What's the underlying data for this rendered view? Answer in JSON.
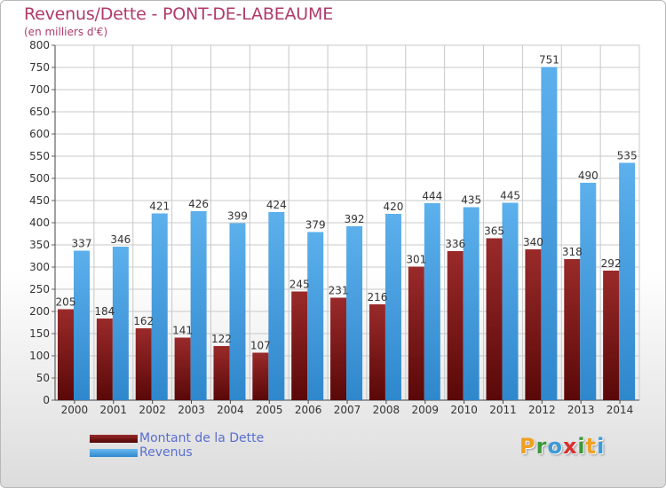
{
  "title": "Revenus/Dette - PONT-DE-LABEAUME",
  "subtitle": "(en milliers d'€)",
  "colors": {
    "debt": "#7a1616",
    "revenue": "#4aa3e4",
    "title": "#b03a6b",
    "legend_text": "#5a6fd0",
    "grid": "#c8c8c8"
  },
  "legend": [
    {
      "label": "Montant de la Dette",
      "color": "#7a1616"
    },
    {
      "label": "Revenus",
      "color": "#4aa3e4"
    }
  ],
  "logo": {
    "text": "Proxiti",
    "letters": [
      "P",
      "r",
      "o",
      "x",
      "i",
      "t",
      "i"
    ]
  },
  "chart_data": {
    "type": "bar",
    "title": "Revenus/Dette - PONT-DE-LABEAUME",
    "subtitle": "(en milliers d'€)",
    "categories": [
      "2000",
      "2001",
      "2002",
      "2003",
      "2004",
      "2005",
      "2006",
      "2007",
      "2008",
      "2009",
      "2010",
      "2011",
      "2012",
      "2013",
      "2014"
    ],
    "series": [
      {
        "name": "Montant de la Dette",
        "values": [
          205,
          184,
          162,
          141,
          122,
          107,
          245,
          231,
          216,
          301,
          336,
          365,
          340,
          318,
          292
        ]
      },
      {
        "name": "Revenus",
        "values": [
          337,
          346,
          421,
          426,
          399,
          424,
          379,
          392,
          420,
          444,
          435,
          445,
          751,
          490,
          535
        ]
      }
    ],
    "ylim": [
      0,
      800
    ],
    "yticks": [
      0,
      50,
      100,
      150,
      200,
      250,
      300,
      350,
      400,
      450,
      500,
      550,
      600,
      650,
      700,
      750,
      800
    ],
    "grid": true,
    "legend_position": "bottom-left"
  }
}
